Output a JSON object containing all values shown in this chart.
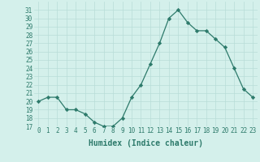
{
  "x": [
    0,
    1,
    2,
    3,
    4,
    5,
    6,
    7,
    8,
    9,
    10,
    11,
    12,
    13,
    14,
    15,
    16,
    17,
    18,
    19,
    20,
    21,
    22,
    23
  ],
  "y": [
    20,
    20.5,
    20.5,
    19,
    19,
    18.5,
    17.5,
    17,
    17,
    18,
    20.5,
    22,
    24.5,
    27,
    30,
    31,
    29.5,
    28.5,
    28.5,
    27.5,
    26.5,
    24,
    21.5,
    20.5
  ],
  "line_color": "#2d7a6b",
  "marker_color": "#2d7a6b",
  "bg_color": "#d4f0eb",
  "grid_color": "#b8ddd7",
  "xlabel": "Humidex (Indice chaleur)",
  "ylim": [
    17,
    32
  ],
  "xlim": [
    -0.5,
    23.5
  ],
  "yticks": [
    17,
    18,
    19,
    20,
    21,
    22,
    23,
    24,
    25,
    26,
    27,
    28,
    29,
    30,
    31
  ],
  "xticks": [
    0,
    1,
    2,
    3,
    4,
    5,
    6,
    7,
    8,
    9,
    10,
    11,
    12,
    13,
    14,
    15,
    16,
    17,
    18,
    19,
    20,
    21,
    22,
    23
  ],
  "tick_color": "#2d7a6b",
  "label_color": "#2d7a6b",
  "font_size": 5.5,
  "xlabel_fontsize": 7.0,
  "linewidth": 0.9,
  "markersize": 2.2
}
